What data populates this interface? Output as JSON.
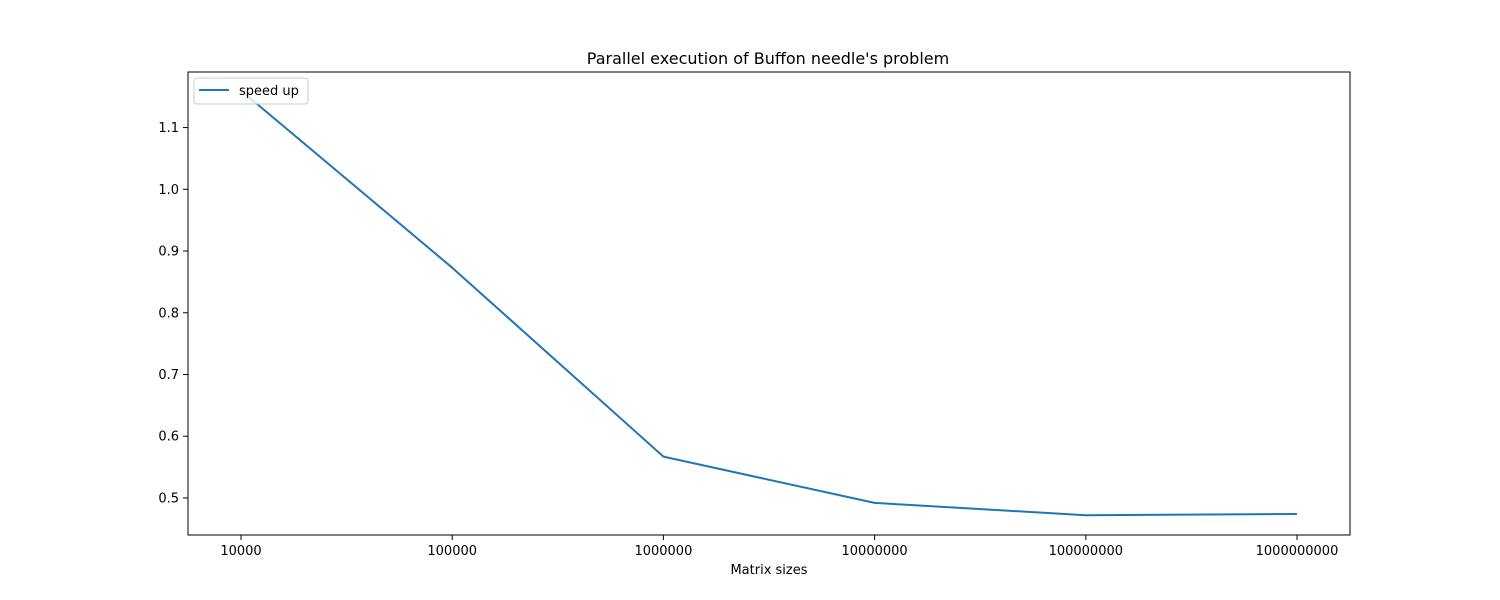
{
  "chart_data": {
    "type": "line",
    "title": "Parallel execution of Buffon needle's problem",
    "xlabel": "Matrix sizes",
    "ylabel": "",
    "categories": [
      "10000",
      "100000",
      "1000000",
      "10000000",
      "100000000",
      "1000000000"
    ],
    "series": [
      {
        "name": "speed up",
        "values": [
          1.16,
          0.873,
          0.567,
          0.492,
          0.472,
          0.474
        ],
        "color": "#1f77b4"
      }
    ],
    "yticks": [
      0.5,
      0.6,
      0.7,
      0.8,
      0.9,
      1.0,
      1.1
    ],
    "ylim": [
      0.44,
      1.19
    ],
    "grid": false,
    "legend_position": "top-left"
  }
}
